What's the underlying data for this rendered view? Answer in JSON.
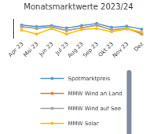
{
  "chart_data": {
    "type": "line",
    "title": "Monatsmarktwerte 2023/24",
    "categories": [
      "Apr 23",
      "Mai 23",
      "Jun 23",
      "Jul 23",
      "Aug 23",
      "Sep 23",
      "Okt 23",
      "Nov 23",
      "Dez"
    ],
    "series": [
      {
        "name": "Spotmarktpreis",
        "color": "#5b9bd5",
        "values": [
          100,
          95,
          98,
          90,
          98,
          105,
          92,
          96,
          86
        ]
      },
      {
        "name": "MMW Wind an Land",
        "color": "#ed7d31",
        "values": [
          95,
          89,
          94,
          82,
          91,
          100,
          84,
          90,
          70
        ]
      },
      {
        "name": "MMW Wind auf See",
        "color": "#a5a5a5",
        "values": [
          94,
          89,
          93,
          82,
          90,
          99,
          84,
          89,
          73
        ]
      },
      {
        "name": "MMW Solar",
        "color": "#ffc000",
        "values": [
          83,
          70,
          88,
          70,
          85,
          88,
          78,
          87,
          77
        ]
      }
    ],
    "ylim": [
      55,
      120
    ],
    "grid": false,
    "legend": "bottom",
    "tick_labels": "x",
    "marker": "circle"
  }
}
